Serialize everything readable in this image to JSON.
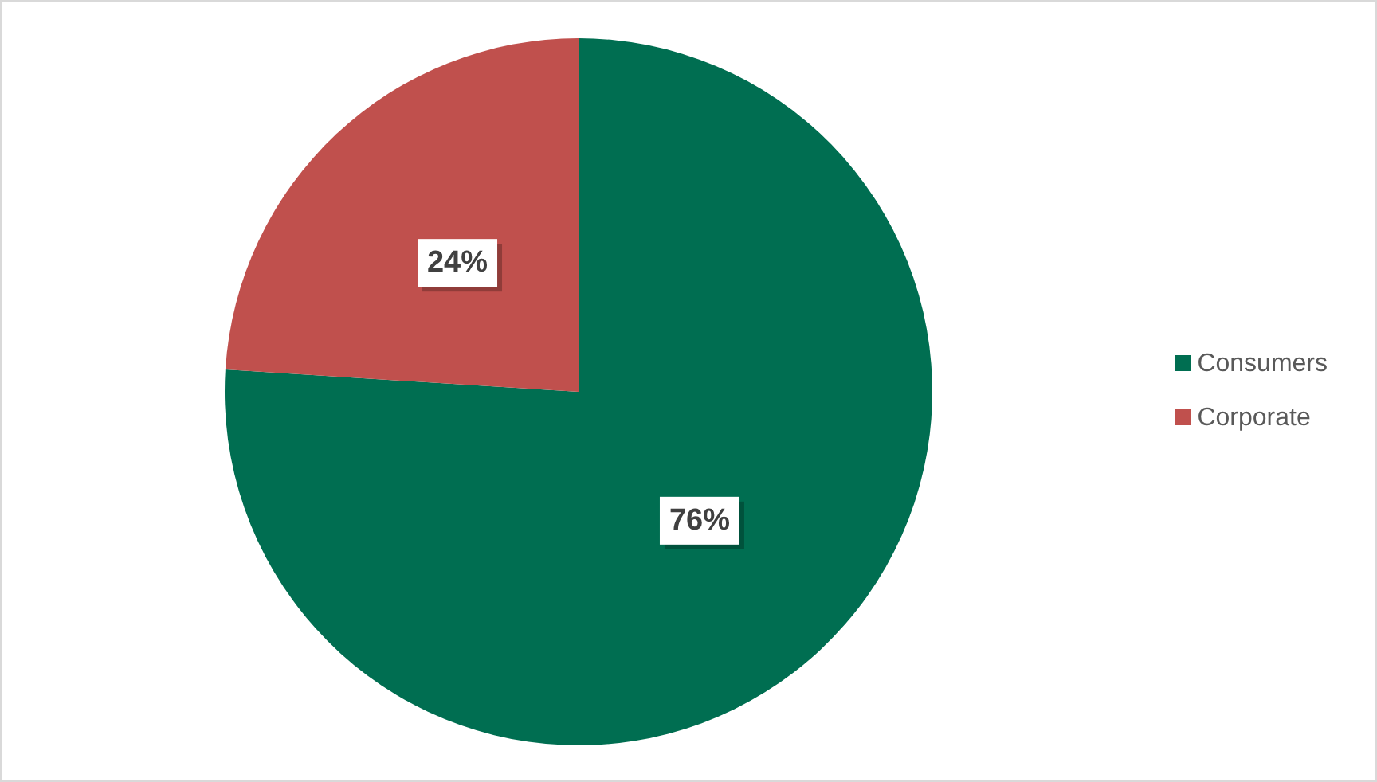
{
  "chart_data": {
    "type": "pie",
    "categories": [
      "Consumers",
      "Corporate"
    ],
    "values": [
      76,
      24
    ],
    "colors": [
      "#006e51",
      "#c0504d"
    ],
    "value_labels": [
      "76%",
      "24%"
    ],
    "legend": "right"
  }
}
